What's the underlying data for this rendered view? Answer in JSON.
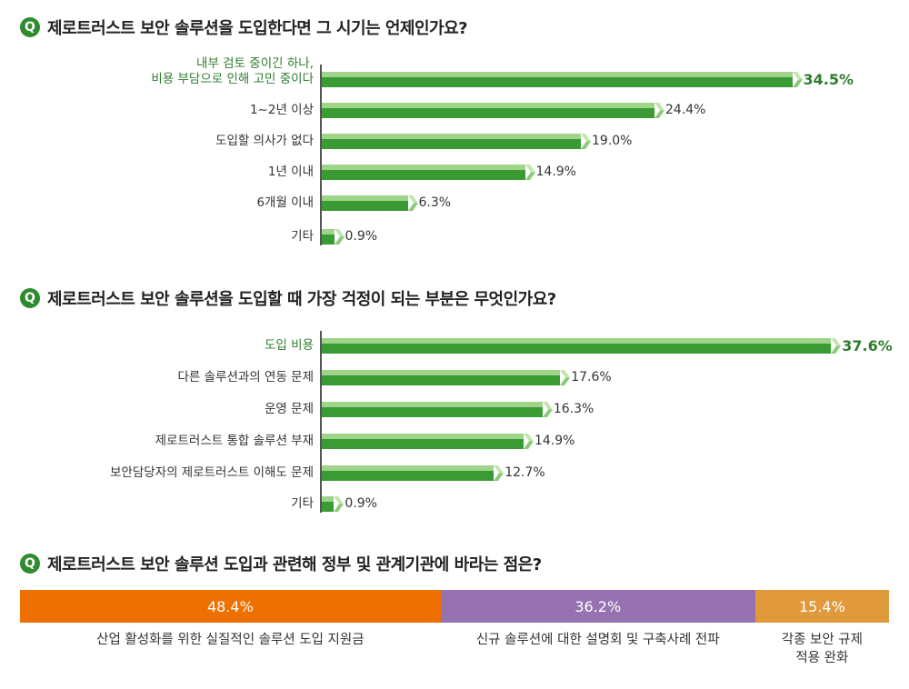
{
  "questions": [
    {
      "badge": "Q",
      "title": "제로트러스트 보안 솔루션을 도입한다면 그 시기는 언제인가요?"
    },
    {
      "badge": "Q",
      "title": "제로트러스트 보안 솔루션을 도입할 때 가장 걱정이 되는 부분은 무엇인가요?"
    },
    {
      "badge": "Q",
      "title": "제로트러스트 보안 솔루션 도입과 관련해 정부 및 관계기관에 바라는 점은?"
    }
  ],
  "chart_data": [
    {
      "type": "bar",
      "orientation": "horizontal",
      "categories": [
        "내부 검토 중이긴 하나,\n비용 부담으로 인해 고민 중이다",
        "1~2년 이상",
        "도입할 의사가 없다",
        "1년 이내",
        "6개월 이내",
        "기타"
      ],
      "values": [
        34.5,
        24.4,
        19.0,
        14.9,
        6.3,
        0.9
      ],
      "value_labels": [
        "34.5%",
        "24.4%",
        "19.0%",
        "14.9%",
        "6.3%",
        "0.9%"
      ],
      "colors": {
        "bar_light": "#9fd48a",
        "bar_dark": "#3a9a34",
        "highlight_text": "#2e7d2e"
      }
    },
    {
      "type": "bar",
      "orientation": "horizontal",
      "categories": [
        "도입 비용",
        "다른 솔루션과의 연동 문제",
        "운영 문제",
        "제로트러스트 통합 솔루션 부재",
        "보안담당자의 제로트러스트 이해도 문제",
        "기타"
      ],
      "values": [
        37.6,
        17.6,
        16.3,
        14.9,
        12.7,
        0.9
      ],
      "value_labels": [
        "37.6%",
        "17.6%",
        "16.3%",
        "14.9%",
        "12.7%",
        "0.9%"
      ],
      "colors": {
        "bar_light": "#9fd48a",
        "bar_dark": "#3a9a34",
        "highlight_text": "#2e7d2e"
      }
    },
    {
      "type": "stacked-bar",
      "categories": [
        "산업 활성화를 위한 실질적인 솔루션 도입 지원금",
        "신규 솔루션에 대한 설명회 및 구축사례 전파",
        "각종 보안 규제\n적용 완화"
      ],
      "values": [
        48.4,
        36.2,
        15.4
      ],
      "value_labels": [
        "48.4%",
        "36.2%",
        "15.4%"
      ],
      "colors": [
        "#ee7000",
        "#9673b0",
        "#e09a3c"
      ]
    }
  ]
}
